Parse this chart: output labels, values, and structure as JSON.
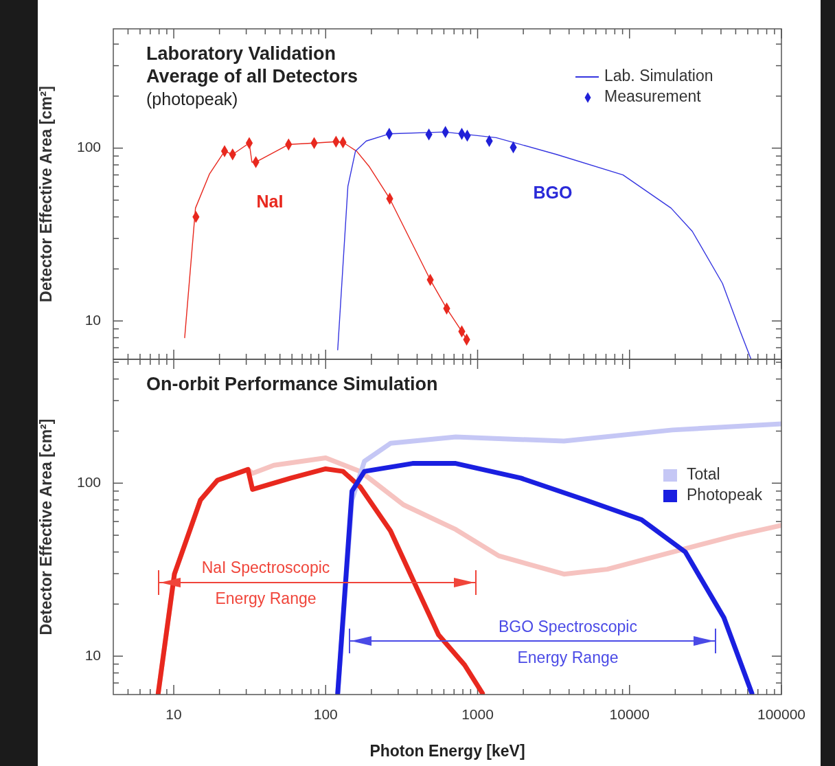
{
  "chart_data": [
    {
      "type": "line",
      "title": "Laboratory Validation\nAverage of all Detectors",
      "subtitle": "(photopeak)",
      "ylabel": "Detector Effective Area [cm²]",
      "log": "xy",
      "xlim": [
        4,
        100000
      ],
      "ylim": [
        6,
        490
      ],
      "xticks": [
        {
          "value": 5,
          "label": null
        },
        {
          "value": 6,
          "label": null
        },
        {
          "value": 7,
          "label": null
        },
        {
          "value": 8,
          "label": null
        },
        {
          "value": 9,
          "label": null
        },
        10,
        {
          "value": 20,
          "label": null
        },
        {
          "value": 30,
          "label": null
        },
        {
          "value": 40,
          "label": null
        },
        {
          "value": 50,
          "label": null
        },
        {
          "value": 60,
          "label": null
        },
        {
          "value": 70,
          "label": null
        },
        {
          "value": 80,
          "label": null
        },
        {
          "value": 90,
          "label": null
        },
        100,
        {
          "value": 200,
          "label": null
        },
        {
          "value": 300,
          "label": null
        },
        {
          "value": 400,
          "label": null
        },
        {
          "value": 500,
          "label": null
        },
        {
          "value": 600,
          "label": null
        },
        {
          "value": 700,
          "label": null
        },
        {
          "value": 800,
          "label": null
        },
        {
          "value": 900,
          "label": null
        },
        1000,
        {
          "value": 2000,
          "label": null
        },
        {
          "value": 3000,
          "label": null
        },
        {
          "value": 4000,
          "label": null
        },
        {
          "value": 5000,
          "label": null
        },
        {
          "value": 6000,
          "label": null
        },
        {
          "value": 7000,
          "label": null
        },
        {
          "value": 8000,
          "label": null
        },
        {
          "value": 9000,
          "label": null
        },
        10000,
        {
          "value": 20000,
          "label": null
        },
        {
          "value": 30000,
          "label": null
        },
        {
          "value": 40000,
          "label": null
        },
        {
          "value": 50000,
          "label": null
        },
        {
          "value": 60000,
          "label": null
        },
        {
          "value": 70000,
          "label": null
        },
        {
          "value": 80000,
          "label": null
        },
        {
          "value": 90000,
          "label": null
        },
        100000
      ],
      "yticks": [
        {
          "value": 7,
          "label": null
        },
        {
          "value": 8,
          "label": null
        },
        {
          "value": 9,
          "label": null
        },
        {
          "value": 10,
          "label": "10"
        },
        {
          "value": 20,
          "label": null
        },
        {
          "value": 30,
          "label": null
        },
        {
          "value": 40,
          "label": null
        },
        {
          "value": 50,
          "label": null
        },
        {
          "value": 60,
          "label": null
        },
        {
          "value": 70,
          "label": null
        },
        {
          "value": 80,
          "label": null
        },
        {
          "value": 90,
          "label": null
        },
        {
          "value": 100,
          "label": "100"
        },
        {
          "value": 200,
          "label": null
        },
        {
          "value": 300,
          "label": null
        },
        {
          "value": 400,
          "label": null
        }
      ],
      "tick_labels": "y",
      "legend": "top right",
      "annotations": [
        "NaI",
        "BGO"
      ],
      "series": [
        {
          "type": "line",
          "color": "#e8281e",
          "marker": "none",
          "x": [
            11.8,
            13.9,
            17.2,
            21.6,
            24.4,
            31.4,
            32.7,
            34.7,
            57,
            84,
            117,
            130,
            160,
            194,
            264,
            488,
            626,
            787,
            847
          ],
          "values": [
            8,
            45,
            71,
            96,
            92,
            107,
            83,
            83,
            105,
            107,
            109,
            108,
            96,
            78,
            51,
            17.3,
            11.8,
            8.7,
            7.8
          ]
        },
        {
          "type": "scatter",
          "color": "#e8281e",
          "marker": "diamond",
          "x": [
            14,
            21.6,
            24.4,
            31.4,
            34.7,
            57,
            84,
            117,
            130,
            264,
            488,
            626,
            787,
            847
          ],
          "values": [
            40,
            96,
            92,
            107,
            83,
            105,
            107,
            109,
            108,
            51,
            17.3,
            11.8,
            8.7,
            7.8
          ]
        },
        {
          "type": "line",
          "name": "Lab. Simulation",
          "color": "#3535e0",
          "marker": "none",
          "x": [
            120,
            140,
            157,
            185,
            262,
            607,
            1324,
            3300,
            9060,
            18760,
            25900,
            40900,
            53600,
            63100
          ],
          "values": [
            6.8,
            60,
            96,
            110,
            121,
            124,
            115,
            92,
            70,
            45,
            33,
            16.5,
            8.7,
            6
          ]
        },
        {
          "type": "scatter",
          "name": "Measurement",
          "color": "#2020d8",
          "marker": "diamond",
          "x": [
            262,
            478,
            614,
            787,
            855,
            1194,
            1718
          ],
          "values": [
            121,
            120,
            124,
            121,
            118,
            110,
            101
          ]
        }
      ]
    },
    {
      "type": "line",
      "title": "On-orbit Performance Simulation",
      "xlabel": "Photon Energy [keV]",
      "ylabel": "Detector Effective Area [cm²]",
      "log": "xy",
      "xlim": [
        4,
        100000
      ],
      "ylim": [
        6,
        520
      ],
      "xticks": [
        {
          "value": 5,
          "label": null
        },
        {
          "value": 6,
          "label": null
        },
        {
          "value": 7,
          "label": null
        },
        {
          "value": 8,
          "label": null
        },
        {
          "value": 9,
          "label": null
        },
        10,
        {
          "value": 20,
          "label": null
        },
        {
          "value": 30,
          "label": null
        },
        {
          "value": 40,
          "label": null
        },
        {
          "value": 50,
          "label": null
        },
        {
          "value": 60,
          "label": null
        },
        {
          "value": 70,
          "label": null
        },
        {
          "value": 80,
          "label": null
        },
        {
          "value": 90,
          "label": null
        },
        100,
        {
          "value": 200,
          "label": null
        },
        {
          "value": 300,
          "label": null
        },
        {
          "value": 400,
          "label": null
        },
        {
          "value": 500,
          "label": null
        },
        {
          "value": 600,
          "label": null
        },
        {
          "value": 700,
          "label": null
        },
        {
          "value": 800,
          "label": null
        },
        {
          "value": 900,
          "label": null
        },
        1000,
        {
          "value": 2000,
          "label": null
        },
        {
          "value": 3000,
          "label": null
        },
        {
          "value": 4000,
          "label": null
        },
        {
          "value": 5000,
          "label": null
        },
        {
          "value": 6000,
          "label": null
        },
        {
          "value": 7000,
          "label": null
        },
        {
          "value": 8000,
          "label": null
        },
        {
          "value": 9000,
          "label": null
        },
        10000,
        {
          "value": 20000,
          "label": null
        },
        {
          "value": 30000,
          "label": null
        },
        {
          "value": 40000,
          "label": null
        },
        {
          "value": 50000,
          "label": null
        },
        {
          "value": 60000,
          "label": null
        },
        {
          "value": 70000,
          "label": null
        },
        {
          "value": 80000,
          "label": null
        },
        {
          "value": 90000,
          "label": null
        },
        100000
      ],
      "yticks": [
        {
          "value": 7,
          "label": null
        },
        {
          "value": 8,
          "label": null
        },
        {
          "value": 9,
          "label": null
        },
        {
          "value": 10,
          "label": "10"
        },
        {
          "value": 20,
          "label": null
        },
        {
          "value": 30,
          "label": null
        },
        {
          "value": 40,
          "label": null
        },
        {
          "value": 50,
          "label": null
        },
        {
          "value": 60,
          "label": null
        },
        {
          "value": 70,
          "label": null
        },
        {
          "value": 80,
          "label": null
        },
        {
          "value": 90,
          "label": null
        },
        {
          "value": 100,
          "label": "100"
        },
        {
          "value": 200,
          "label": null
        },
        {
          "value": 300,
          "label": null
        },
        {
          "value": 400,
          "label": null
        },
        {
          "value": 500,
          "label": null
        }
      ],
      "legend": "right",
      "annotations": [
        "NaI Spectroscopic\nEnergy Range",
        "BGO Spectroscopic\nEnergy Range"
      ],
      "series": [
        {
          "type": "line",
          "color": "#f6c3c0",
          "x": [
            7.9,
            10.1,
            15,
            19.4,
            30.8,
            33,
            45.6,
            100,
            169,
            325,
            718,
            1380,
            3700,
            7130,
            19150,
            50800,
            100000
          ],
          "values": [
            6.1,
            29.8,
            80,
            104,
            120,
            114,
            127,
            140,
            117,
            75,
            54,
            38,
            29.8,
            31.8,
            40,
            50,
            57
          ]
        },
        {
          "type": "line",
          "name": "Total",
          "color": "#c5c7f5",
          "x": [
            120,
            149,
            180,
            267,
            718,
            3700,
            19150,
            100000
          ],
          "values": [
            6.1,
            80,
            134,
            170,
            185,
            175,
            203,
            220
          ]
        },
        {
          "type": "line",
          "color": "#e8281e",
          "x": [
            7.9,
            10.1,
            15,
            19.4,
            30.8,
            33,
            59,
            100,
            130,
            169,
            267,
            373,
            553,
            821,
            1076
          ],
          "values": [
            6.1,
            29.8,
            80,
            104,
            120,
            92,
            107,
            121,
            117,
            95,
            53,
            28,
            13.3,
            8.9,
            6.1
          ]
        },
        {
          "type": "line",
          "name": "Photopeak",
          "color": "#1a1fe0",
          "x": [
            120,
            149,
            180,
            373,
            718,
            1925,
            5120,
            12000,
            23300,
            41800,
            63900
          ],
          "values": [
            6.1,
            90,
            117,
            130,
            130,
            107,
            80,
            61.5,
            40,
            16.7,
            6.1
          ]
        }
      ]
    }
  ]
}
